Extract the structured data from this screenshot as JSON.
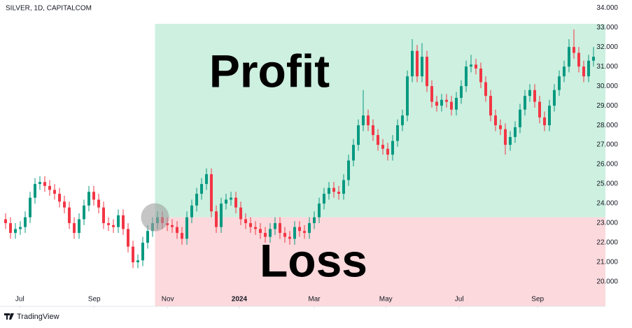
{
  "chart_data": {
    "type": "candlestick",
    "title": "SILVER, 1D, CAPITALCOM",
    "footer": "TradingView",
    "up_color": "#089981",
    "down_color": "#f23645",
    "xlim": [
      0,
      120
    ],
    "xticks": [
      {
        "value": 2.9,
        "label": "Jul"
      },
      {
        "value": 18.1,
        "label": "Sep"
      },
      {
        "value": 33.1,
        "label": "Nov"
      },
      {
        "value": 47.7,
        "label": "2024"
      },
      {
        "value": 63,
        "label": "Mar"
      },
      {
        "value": 77.6,
        "label": "May"
      },
      {
        "value": 92.6,
        "label": "Jul"
      },
      {
        "value": 108.6,
        "label": "Sep"
      }
    ],
    "ylim": [
      18.75,
      34.4
    ],
    "yticks": [
      {
        "value": 20,
        "label": "20.000"
      },
      {
        "value": 21,
        "label": "21.000"
      },
      {
        "value": 22,
        "label": "22.000"
      },
      {
        "value": 23,
        "label": "23.000"
      },
      {
        "value": 24,
        "label": "24.000"
      },
      {
        "value": 25,
        "label": "25.000"
      },
      {
        "value": 26,
        "label": "26.000"
      },
      {
        "value": 27,
        "label": "27.000"
      },
      {
        "value": 28,
        "label": "28.000"
      },
      {
        "value": 29,
        "label": "29.000"
      },
      {
        "value": 30,
        "label": "30.000"
      },
      {
        "value": 31,
        "label": "31.000"
      },
      {
        "value": 32,
        "label": "32.000"
      },
      {
        "value": 33,
        "label": "33.000"
      },
      {
        "value": 34,
        "label": "34.000"
      }
    ],
    "position": {
      "entry_index": 30.5,
      "entry_price": 23.3,
      "take_profit": 33.18,
      "stop_loss": 18.75,
      "profit_label": "Profit",
      "loss_label": "Loss",
      "profit_color": "#cdf0e0",
      "loss_color": "#fbd9dc"
    },
    "open": [
      23.2,
      23.0,
      22.5,
      22.7,
      22.8,
      23.3,
      24.3,
      25.0,
      25.1,
      24.9,
      24.7,
      24.5,
      24.1,
      23.8,
      23.0,
      22.5,
      23.2,
      23.9,
      24.6,
      24.2,
      23.8,
      23.0,
      22.9,
      22.8,
      23.4,
      22.7,
      21.8,
      21.0,
      21.1,
      22.0,
      22.6,
      23.0,
      23.3,
      23.0,
      22.9,
      22.8,
      22.5,
      22.2,
      23.3,
      23.9,
      24.5,
      25.0,
      25.5,
      23.6,
      22.8,
      24.0,
      24.2,
      24.3,
      23.8,
      23.2,
      23.0,
      22.8,
      22.7,
      22.5,
      22.3,
      22.7,
      23.0,
      22.5,
      22.3,
      22.2,
      22.8,
      22.6,
      22.5,
      23.0,
      23.3,
      24.0,
      24.5,
      24.8,
      24.6,
      24.5,
      25.2,
      26.2,
      27.0,
      28.0,
      28.5,
      28.0,
      27.5,
      27.0,
      26.8,
      26.5,
      27.2,
      28.0,
      28.5,
      30.5,
      31.8,
      30.5,
      31.5,
      30.0,
      29.2,
      29.0,
      29.3,
      29.2,
      28.8,
      29.4,
      30.0,
      31.0,
      31.1,
      30.9,
      30.2,
      29.5,
      28.5,
      28.0,
      27.8,
      27.0,
      27.4,
      27.9,
      28.8,
      29.5,
      29.8,
      29.2,
      28.4,
      28.0,
      29.0,
      29.8,
      30.5,
      31.0,
      32.0,
      31.7,
      31.0,
      30.5,
      31.3
    ],
    "high": [
      23.5,
      23.3,
      23.0,
      23.1,
      23.6,
      24.6,
      25.3,
      25.4,
      25.4,
      25.2,
      25.0,
      24.8,
      24.4,
      24.1,
      23.3,
      23.5,
      24.2,
      24.9,
      24.9,
      24.5,
      24.1,
      23.3,
      23.2,
      23.7,
      23.7,
      23.0,
      22.1,
      21.4,
      22.3,
      22.9,
      23.3,
      23.6,
      23.6,
      23.3,
      23.2,
      23.1,
      22.8,
      23.6,
      24.2,
      24.8,
      25.3,
      25.8,
      25.8,
      23.9,
      24.3,
      24.5,
      24.6,
      24.6,
      24.1,
      23.5,
      23.3,
      23.1,
      23.0,
      22.8,
      23.0,
      23.3,
      23.3,
      22.8,
      22.6,
      23.1,
      23.1,
      22.9,
      23.3,
      23.6,
      24.3,
      24.8,
      25.1,
      25.1,
      24.9,
      25.5,
      26.5,
      27.3,
      28.3,
      29.8,
      28.8,
      28.3,
      27.8,
      27.3,
      27.1,
      27.5,
      28.3,
      28.8,
      30.8,
      32.4,
      32.1,
      32.2,
      31.8,
      30.3,
      29.5,
      29.6,
      29.6,
      29.5,
      29.7,
      30.3,
      31.3,
      31.6,
      31.4,
      31.2,
      30.5,
      29.8,
      28.8,
      28.3,
      28.1,
      27.7,
      28.2,
      29.1,
      29.8,
      30.1,
      30.1,
      29.5,
      28.7,
      29.3,
      30.1,
      30.8,
      31.3,
      32.4,
      32.9,
      32.0,
      31.3,
      31.6,
      32.0
    ],
    "low": [
      22.7,
      22.2,
      22.2,
      22.4,
      22.5,
      23.0,
      24.0,
      24.7,
      24.6,
      24.4,
      24.2,
      23.8,
      23.5,
      22.7,
      22.2,
      22.2,
      22.9,
      23.6,
      23.9,
      23.5,
      22.7,
      22.6,
      22.5,
      22.5,
      22.4,
      21.5,
      20.7,
      20.7,
      20.8,
      21.7,
      22.3,
      22.7,
      22.7,
      22.6,
      22.5,
      22.2,
      21.9,
      21.9,
      23.0,
      23.6,
      24.2,
      24.7,
      23.3,
      22.5,
      22.5,
      23.7,
      23.9,
      23.5,
      22.9,
      22.7,
      22.5,
      22.4,
      22.2,
      22.0,
      22.0,
      22.4,
      22.2,
      22.0,
      21.9,
      21.9,
      22.3,
      22.2,
      22.2,
      22.7,
      23.0,
      23.7,
      24.2,
      24.3,
      24.2,
      24.2,
      24.9,
      25.9,
      26.7,
      27.7,
      27.7,
      27.2,
      26.7,
      26.5,
      26.2,
      26.2,
      26.9,
      27.7,
      28.2,
      30.2,
      30.2,
      30.2,
      29.7,
      28.9,
      28.7,
      28.7,
      28.9,
      28.5,
      28.5,
      29.1,
      29.7,
      30.7,
      30.6,
      29.9,
      29.2,
      28.2,
      27.7,
      27.5,
      26.5,
      26.7,
      27.1,
      27.6,
      28.5,
      29.2,
      28.9,
      28.1,
      27.7,
      27.7,
      28.7,
      29.5,
      30.2,
      30.7,
      31.4,
      30.7,
      30.2,
      30.2,
      31.0
    ],
    "close": [
      23.0,
      22.5,
      22.7,
      22.8,
      23.3,
      24.3,
      25.0,
      25.1,
      24.9,
      24.7,
      24.5,
      24.1,
      23.8,
      23.0,
      22.5,
      23.2,
      23.9,
      24.6,
      24.2,
      23.8,
      23.0,
      22.9,
      22.8,
      23.4,
      22.7,
      21.8,
      21.0,
      21.1,
      22.0,
      22.6,
      23.0,
      23.3,
      23.0,
      22.9,
      22.8,
      22.5,
      22.2,
      23.3,
      23.9,
      24.5,
      25.0,
      25.5,
      23.6,
      22.8,
      24.0,
      24.2,
      24.3,
      23.8,
      23.2,
      23.0,
      22.8,
      22.7,
      22.5,
      22.3,
      22.7,
      23.0,
      22.5,
      22.3,
      22.2,
      22.8,
      22.6,
      22.5,
      23.0,
      23.3,
      24.0,
      24.5,
      24.8,
      24.6,
      24.5,
      25.2,
      26.2,
      27.0,
      28.0,
      28.5,
      28.0,
      27.5,
      27.0,
      26.8,
      26.5,
      27.2,
      28.0,
      28.5,
      30.5,
      31.8,
      30.5,
      31.5,
      30.0,
      29.2,
      29.0,
      29.3,
      29.2,
      28.8,
      29.4,
      30.0,
      31.0,
      31.1,
      30.9,
      30.2,
      29.5,
      28.5,
      28.0,
      27.8,
      27.0,
      27.4,
      27.9,
      28.8,
      29.5,
      29.8,
      29.2,
      28.4,
      28.0,
      29.0,
      29.8,
      30.5,
      31.0,
      32.0,
      31.7,
      31.0,
      30.5,
      31.3,
      31.5
    ]
  }
}
